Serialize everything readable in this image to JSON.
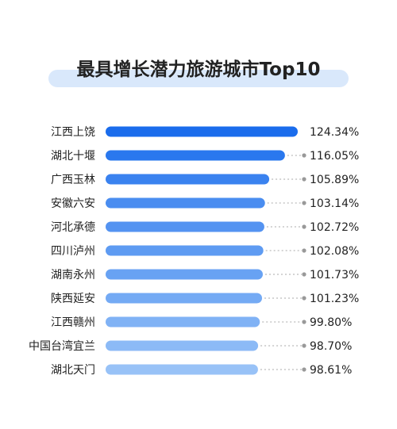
{
  "title": "最具增长潜力旅游城市Top10",
  "chart_data": {
    "type": "bar",
    "orientation": "horizontal",
    "title": "最具增长潜力旅游城市Top10",
    "categories": [
      "江西上饶",
      "湖北十堰",
      "广西玉林",
      "安徽六安",
      "河北承德",
      "四川泸州",
      "湖南永州",
      "陕西延安",
      "江西赣州",
      "中国台湾宜兰",
      "湖北天门"
    ],
    "values": [
      124.34,
      116.05,
      105.89,
      103.14,
      102.72,
      102.08,
      101.73,
      101.23,
      99.8,
      98.7,
      98.61
    ],
    "value_labels": [
      "124.34%",
      "116.05%",
      "105.89%",
      "103.14%",
      "102.72%",
      "102.08%",
      "101.73%",
      "101.23%",
      "99.80%",
      "98.70%",
      "98.61%"
    ],
    "unit": "%",
    "colors": [
      "#1a6cec",
      "#2a78ee",
      "#3a82ef",
      "#4a8df0",
      "#5493f1",
      "#5e9bf2",
      "#68a2f3",
      "#74aaf4",
      "#80b2f5",
      "#8cbaf6",
      "#98c2f7"
    ],
    "connector_color": "#aaaaaa",
    "grid": false,
    "legend": "none"
  }
}
